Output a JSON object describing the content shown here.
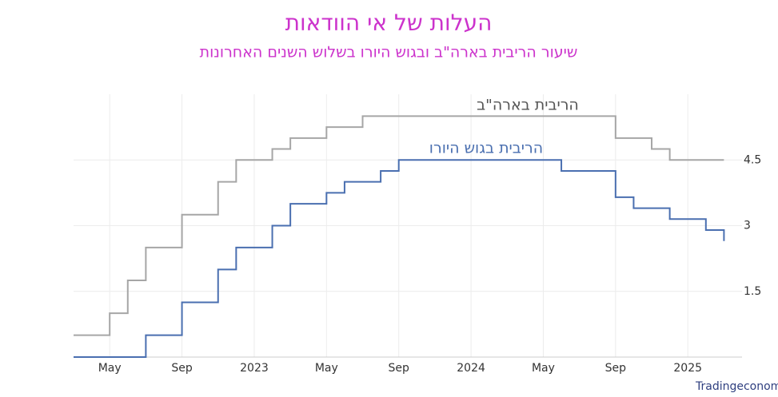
{
  "chart_data": {
    "type": "step-line",
    "title": "העלות של אי הוודאות",
    "subtitle": "שיעור הריבית בארה\"ב ובגוש היורו בשלוש השנים האחרונות",
    "source": "מקור: Tradingeconomics.com",
    "xlim": [
      "2022-03",
      "2025-04"
    ],
    "xticks": [
      {
        "value": "2022-05",
        "label": "May"
      },
      {
        "value": "2022-09",
        "label": "Sep"
      },
      {
        "value": "2023-01",
        "label": "2023"
      },
      {
        "value": "2023-05",
        "label": "May"
      },
      {
        "value": "2023-09",
        "label": "Sep"
      },
      {
        "value": "2024-01",
        "label": "2024"
      },
      {
        "value": "2024-05",
        "label": "May"
      },
      {
        "value": "2024-09",
        "label": "Sep"
      },
      {
        "value": "2025-01",
        "label": "2025"
      }
    ],
    "ylim": [
      0,
      6
    ],
    "yticks": [
      1.5,
      3,
      4.5
    ],
    "grid": true,
    "series": [
      {
        "name": "הריבית בארה\"ב",
        "color": "#a6a6a6",
        "x": [
          "2022-03",
          "2022-05",
          "2022-06",
          "2022-07",
          "2022-09",
          "2022-11",
          "2022-12",
          "2023-02",
          "2023-03",
          "2023-05",
          "2023-07",
          "2024-09",
          "2024-11",
          "2024-12",
          "2025-03"
        ],
        "values": [
          0.5,
          1.0,
          1.75,
          2.5,
          3.25,
          4.0,
          4.5,
          4.75,
          5.0,
          5.25,
          5.5,
          5.0,
          4.75,
          4.5,
          4.5
        ]
      },
      {
        "name": "הריבית בגוש היורו",
        "color": "#4a6fb0",
        "x": [
          "2022-03",
          "2022-07",
          "2022-09",
          "2022-11",
          "2022-12",
          "2023-02",
          "2023-03",
          "2023-05",
          "2023-06",
          "2023-08",
          "2023-09",
          "2024-06",
          "2024-09",
          "2024-10",
          "2024-12",
          "2025-02",
          "2025-03"
        ],
        "values": [
          0,
          0.5,
          1.25,
          2.0,
          2.5,
          3.0,
          3.5,
          3.75,
          4.0,
          4.25,
          4.5,
          4.25,
          3.65,
          3.4,
          3.15,
          2.9,
          2.65
        ]
      }
    ]
  }
}
